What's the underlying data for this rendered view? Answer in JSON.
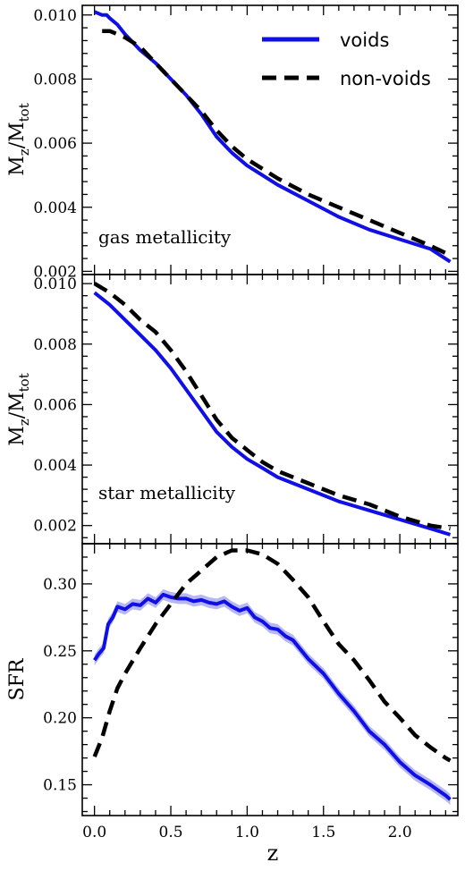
{
  "colors": {
    "voids": "#1010e6",
    "non_voids": "#000000",
    "band": "#7b7bea"
  },
  "legend": {
    "voids": "voids",
    "non_voids": "non-voids"
  },
  "shared": {
    "xlabel": "z",
    "x_ticks": [
      "0.0",
      "0.5",
      "1.0",
      "1.5",
      "2.0"
    ],
    "xlim": [
      -0.08,
      2.38
    ]
  },
  "chart_data": [
    {
      "type": "line",
      "panel_label": "gas metallicity",
      "ylabel": "M_z/M_tot",
      "ylim": [
        0.0019,
        0.0103
      ],
      "y_ticks": [
        "0.002",
        "0.004",
        "0.006",
        "0.008",
        "0.010"
      ],
      "legend_position": "top-right",
      "series": [
        {
          "name": "voids",
          "style": "solid",
          "x": [
            0.0,
            0.05,
            0.08,
            0.1,
            0.15,
            0.2,
            0.3,
            0.4,
            0.5,
            0.6,
            0.7,
            0.8,
            0.9,
            1.0,
            1.1,
            1.2,
            1.4,
            1.6,
            1.8,
            2.0,
            2.2,
            2.33
          ],
          "y": [
            0.0101,
            0.01,
            0.01,
            0.0099,
            0.0097,
            0.0094,
            0.0089,
            0.0085,
            0.008,
            0.0075,
            0.0069,
            0.0062,
            0.0057,
            0.0053,
            0.005,
            0.0047,
            0.0042,
            0.0037,
            0.0033,
            0.003,
            0.0027,
            0.0023
          ]
        },
        {
          "name": "non-voids",
          "style": "dashed",
          "x": [
            0.05,
            0.1,
            0.15,
            0.2,
            0.3,
            0.4,
            0.5,
            0.6,
            0.7,
            0.8,
            0.9,
            1.0,
            1.1,
            1.2,
            1.4,
            1.6,
            1.8,
            2.0,
            2.2,
            2.33
          ],
          "y": [
            0.0095,
            0.0095,
            0.0094,
            0.0093,
            0.009,
            0.0085,
            0.008,
            0.0075,
            0.007,
            0.0064,
            0.0059,
            0.0055,
            0.0052,
            0.0049,
            0.0044,
            0.004,
            0.0036,
            0.0032,
            0.0028,
            0.0025
          ]
        }
      ]
    },
    {
      "type": "line",
      "panel_label": "star metallicity",
      "ylabel": "M_z/M_tot",
      "ylim": [
        0.0014,
        0.0103
      ],
      "y_ticks": [
        "0.002",
        "0.004",
        "0.006",
        "0.008",
        "0.010"
      ],
      "series": [
        {
          "name": "voids",
          "style": "solid",
          "x": [
            0.0,
            0.1,
            0.2,
            0.3,
            0.4,
            0.5,
            0.6,
            0.7,
            0.8,
            0.9,
            1.0,
            1.1,
            1.2,
            1.4,
            1.6,
            1.8,
            2.0,
            2.2,
            2.33
          ],
          "y": [
            0.0097,
            0.0093,
            0.0088,
            0.0083,
            0.0078,
            0.0072,
            0.0065,
            0.0058,
            0.0051,
            0.0046,
            0.0042,
            0.0039,
            0.0036,
            0.0032,
            0.0028,
            0.0025,
            0.0022,
            0.0019,
            0.0017
          ]
        },
        {
          "name": "non-voids",
          "style": "dashed",
          "x": [
            0.0,
            0.1,
            0.2,
            0.3,
            0.4,
            0.5,
            0.6,
            0.7,
            0.8,
            0.9,
            1.0,
            1.1,
            1.2,
            1.4,
            1.6,
            1.8,
            2.0,
            2.2,
            2.33
          ],
          "y": [
            0.01,
            0.0097,
            0.0093,
            0.0088,
            0.0084,
            0.0078,
            0.0071,
            0.0063,
            0.0055,
            0.0049,
            0.0045,
            0.0041,
            0.0038,
            0.0034,
            0.003,
            0.0027,
            0.0023,
            0.002,
            0.0019
          ]
        }
      ]
    },
    {
      "type": "line",
      "panel_label": "",
      "ylabel": "SFR",
      "ylim": [
        0.127,
        0.33
      ],
      "y_ticks": [
        "0.15",
        "0.20",
        "0.25",
        "0.30"
      ],
      "series": [
        {
          "name": "voids",
          "style": "solid",
          "band": 0.004,
          "x": [
            0.0,
            0.03,
            0.06,
            0.09,
            0.12,
            0.15,
            0.2,
            0.25,
            0.3,
            0.35,
            0.4,
            0.45,
            0.5,
            0.55,
            0.6,
            0.65,
            0.7,
            0.75,
            0.8,
            0.85,
            0.9,
            0.95,
            1.0,
            1.05,
            1.1,
            1.15,
            1.2,
            1.25,
            1.3,
            1.4,
            1.5,
            1.6,
            1.7,
            1.8,
            1.9,
            2.0,
            2.1,
            2.2,
            2.3,
            2.33
          ],
          "y": [
            0.243,
            0.248,
            0.252,
            0.27,
            0.275,
            0.283,
            0.281,
            0.285,
            0.284,
            0.289,
            0.286,
            0.292,
            0.29,
            0.289,
            0.289,
            0.287,
            0.288,
            0.286,
            0.285,
            0.287,
            0.283,
            0.28,
            0.282,
            0.275,
            0.272,
            0.267,
            0.266,
            0.261,
            0.258,
            0.244,
            0.233,
            0.218,
            0.205,
            0.19,
            0.18,
            0.167,
            0.157,
            0.15,
            0.142,
            0.139
          ]
        },
        {
          "name": "non-voids",
          "style": "dashed",
          "x": [
            0.0,
            0.05,
            0.1,
            0.15,
            0.2,
            0.3,
            0.4,
            0.5,
            0.6,
            0.7,
            0.8,
            0.9,
            1.0,
            1.1,
            1.2,
            1.3,
            1.4,
            1.5,
            1.6,
            1.7,
            1.8,
            1.9,
            2.0,
            2.1,
            2.2,
            2.3,
            2.33
          ],
          "y": [
            0.171,
            0.185,
            0.205,
            0.222,
            0.233,
            0.252,
            0.27,
            0.285,
            0.3,
            0.31,
            0.32,
            0.325,
            0.325,
            0.322,
            0.315,
            0.303,
            0.29,
            0.272,
            0.255,
            0.243,
            0.228,
            0.212,
            0.2,
            0.187,
            0.178,
            0.17,
            0.168
          ]
        }
      ]
    }
  ]
}
